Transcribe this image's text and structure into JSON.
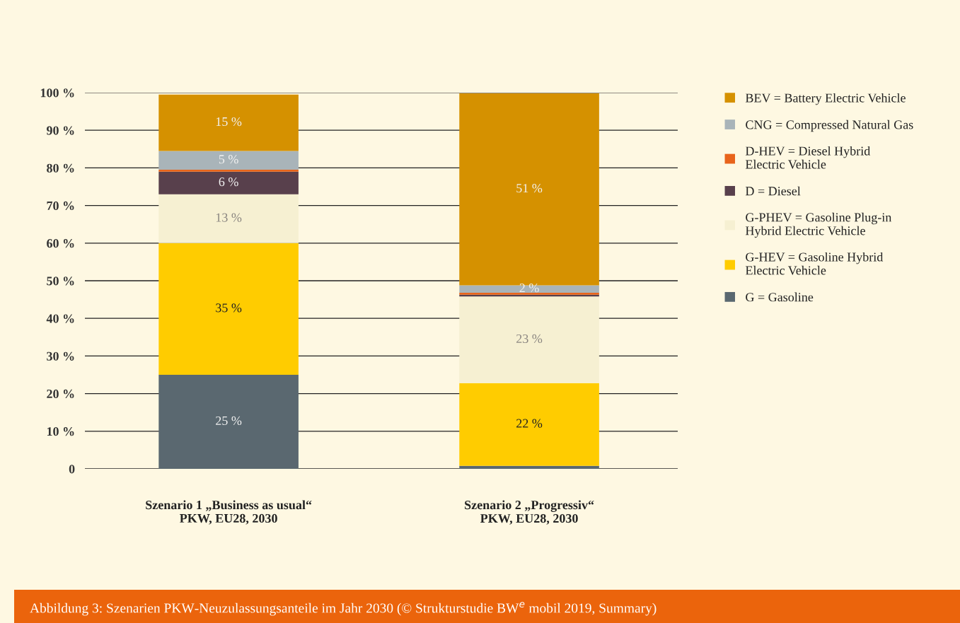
{
  "chart_data": {
    "type": "bar",
    "stacked": true,
    "categories": [
      "Szenario 1 „Business as usual“\nPKW, EU28, 2030",
      "Szenario 2 „Progressiv“\nPKW, EU28, 2030"
    ],
    "series": [
      {
        "name": "G = Gasoline",
        "color": "#5a6870",
        "values": [
          25,
          0.8
        ],
        "value_labels": [
          "25 %",
          null
        ]
      },
      {
        "name": "G-HEV = Gasoline Hybrid\nElectric Vehicle",
        "color": "#ffcc00",
        "values": [
          35,
          22
        ],
        "value_labels": [
          "35 %",
          "22 %"
        ]
      },
      {
        "name": "G-PHEV = Gasoline Plug-in\nHybrid Electric Vehicle",
        "color": "#f6f0d2",
        "values": [
          13,
          23
        ],
        "value_labels": [
          "13 %",
          "23 %"
        ]
      },
      {
        "name": "D = Diesel",
        "color": "#58404c",
        "values": [
          6,
          0.5
        ],
        "value_labels": [
          "6 %",
          null
        ]
      },
      {
        "name": "D-HEV = Diesel Hybrid\nElectric Vehicle",
        "color": "#e8641b",
        "values": [
          0.5,
          0.5
        ],
        "value_labels": [
          null,
          null
        ]
      },
      {
        "name": "CNG = Compressed Natural Gas",
        "color": "#a9b4b9",
        "values": [
          5,
          2
        ],
        "value_labels": [
          "5 %",
          "2 %"
        ]
      },
      {
        "name": "BEV = Battery Electric Vehicle",
        "color": "#d59100",
        "values": [
          15,
          51
        ],
        "value_labels": [
          "15 %",
          "51 %"
        ]
      }
    ],
    "ylim": [
      0,
      100
    ],
    "yticks": [
      0,
      {
        "value": 10,
        "label": "10 %"
      },
      {
        "value": 20,
        "label": "20 %"
      },
      {
        "value": 30,
        "label": "30 %"
      },
      {
        "value": 40,
        "label": "40 %"
      },
      {
        "value": 50,
        "label": "50 %"
      },
      {
        "value": 60,
        "label": "60 %"
      },
      {
        "value": 70,
        "label": "70 %"
      },
      {
        "value": 80,
        "label": "80 %"
      },
      {
        "value": 90,
        "label": "90 %"
      },
      {
        "value": 100,
        "label": "100 %"
      }
    ],
    "grid": "y",
    "legend": "right",
    "annotations": [
      "Abbildung 3: Szenarien PKW-Neuzulassungsanteile im Jahr 2030 (© Strukturstudie BW$^{e}$ mobil 2019, Summary)"
    ]
  }
}
